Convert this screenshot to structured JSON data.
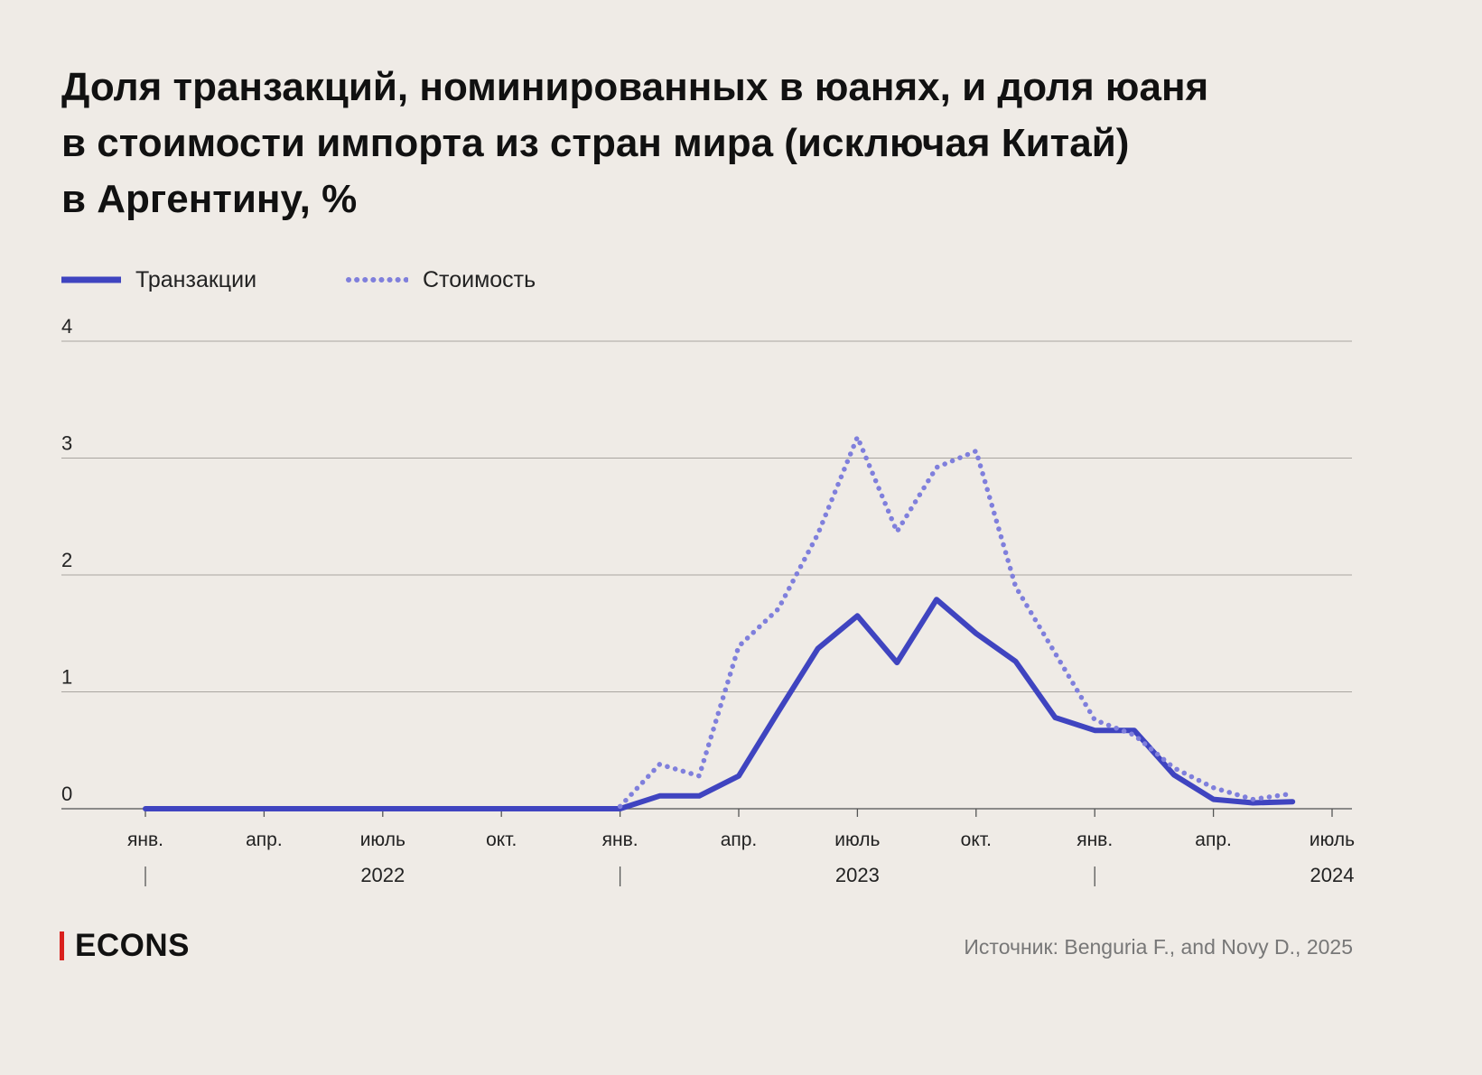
{
  "title_lines": [
    "Доля транзакций, номинированных в юанях, и доля юаня",
    "в стоимости импорта из стран мира (исключая Китай)",
    "в Аргентину, %"
  ],
  "legend": [
    {
      "label": "Транзакции",
      "color": "#3f44c0",
      "style": "solid"
    },
    {
      "label": "Стоимость",
      "color": "#7f7fdc",
      "style": "dotted"
    }
  ],
  "footer": {
    "brand": "ECONS",
    "source": "Источник: Benguria F., and Novy D., 2025"
  },
  "chart_data": {
    "type": "line",
    "x_unit": "month",
    "ylim": [
      0,
      4
    ],
    "yticks": [
      0,
      1,
      2,
      3,
      4
    ],
    "grid": "horizontal",
    "legend_position": "top-left",
    "x_ticks": [
      {
        "date": "2022-01",
        "label": "янв."
      },
      {
        "date": "2022-04",
        "label": "апр."
      },
      {
        "date": "2022-07",
        "label": "июль"
      },
      {
        "date": "2022-10",
        "label": "окт."
      },
      {
        "date": "2023-01",
        "label": "янв."
      },
      {
        "date": "2023-04",
        "label": "апр."
      },
      {
        "date": "2023-07",
        "label": "июль"
      },
      {
        "date": "2023-10",
        "label": "окт."
      },
      {
        "date": "2024-01",
        "label": "янв."
      },
      {
        "date": "2024-04",
        "label": "апр."
      },
      {
        "date": "2024-07",
        "label": "июль"
      }
    ],
    "year_labels": [
      {
        "label": "2022",
        "date": "2022-07"
      },
      {
        "label": "2023",
        "date": "2023-07"
      },
      {
        "label": "2024",
        "date": "2024-07"
      }
    ],
    "year_separators": [
      "2022-01",
      "2023-01",
      "2024-01"
    ],
    "series": [
      {
        "name": "Транзакции",
        "color": "#3f44c0",
        "style": "solid",
        "points": [
          [
            "2022-01",
            0
          ],
          [
            "2022-02",
            0
          ],
          [
            "2022-03",
            0
          ],
          [
            "2022-04",
            0
          ],
          [
            "2022-05",
            0
          ],
          [
            "2022-06",
            0
          ],
          [
            "2022-07",
            0
          ],
          [
            "2022-08",
            0
          ],
          [
            "2022-09",
            0
          ],
          [
            "2022-10",
            0
          ],
          [
            "2022-11",
            0
          ],
          [
            "2022-12",
            0
          ],
          [
            "2023-01",
            0
          ],
          [
            "2023-02",
            0.11
          ],
          [
            "2023-03",
            0.11
          ],
          [
            "2023-04",
            0.28
          ],
          [
            "2023-05",
            0.83
          ],
          [
            "2023-06",
            1.37
          ],
          [
            "2023-07",
            1.65
          ],
          [
            "2023-08",
            1.25
          ],
          [
            "2023-09",
            1.79
          ],
          [
            "2023-10",
            1.5
          ],
          [
            "2023-11",
            1.26
          ],
          [
            "2023-12",
            0.78
          ],
          [
            "2024-01",
            0.67
          ],
          [
            "2024-02",
            0.67
          ],
          [
            "2024-03",
            0.29
          ],
          [
            "2024-04",
            0.08
          ],
          [
            "2024-05",
            0.05
          ],
          [
            "2024-06",
            0.06
          ]
        ]
      },
      {
        "name": "Стоимость",
        "color": "#7f7fdc",
        "style": "dotted",
        "points": [
          [
            "2023-01",
            0.02
          ],
          [
            "2023-02",
            0.38
          ],
          [
            "2023-03",
            0.28
          ],
          [
            "2023-04",
            1.39
          ],
          [
            "2023-05",
            1.71
          ],
          [
            "2023-06",
            2.35
          ],
          [
            "2023-07",
            3.18
          ],
          [
            "2023-08",
            2.37
          ],
          [
            "2023-09",
            2.92
          ],
          [
            "2023-10",
            3.06
          ],
          [
            "2023-11",
            1.9
          ],
          [
            "2023-12",
            1.33
          ],
          [
            "2024-01",
            0.76
          ],
          [
            "2024-02",
            0.63
          ],
          [
            "2024-03",
            0.35
          ],
          [
            "2024-04",
            0.18
          ],
          [
            "2024-05",
            0.08
          ],
          [
            "2024-06",
            0.13
          ]
        ]
      }
    ]
  }
}
